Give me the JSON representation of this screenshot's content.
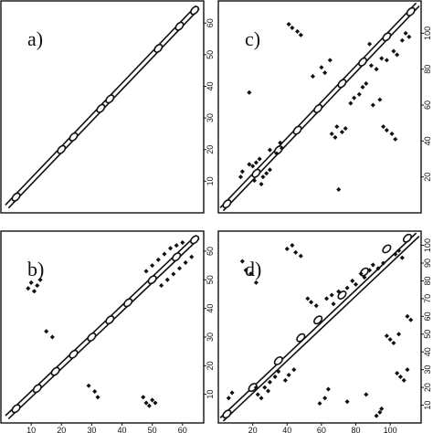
{
  "chart_data": [
    {
      "type": "contour",
      "panel_label": "a)",
      "x_tick_labels": [],
      "y_tick_labels": [
        "10",
        "20",
        "30",
        "40",
        "50",
        "60"
      ],
      "xlim": [
        0,
        67
      ],
      "ylim": [
        0,
        67
      ],
      "diagonal_blobs": [
        [
          5,
          5
        ],
        [
          20,
          20
        ],
        [
          24,
          24
        ],
        [
          33,
          33
        ],
        [
          36,
          36
        ],
        [
          52,
          52
        ],
        [
          59,
          59
        ],
        [
          64,
          64
        ]
      ],
      "offdiag_points": []
    },
    {
      "type": "contour",
      "panel_label": "c)",
      "x_tick_labels": [],
      "y_tick_labels": [
        "20",
        "40",
        "60",
        "80",
        "100"
      ],
      "xlim": [
        0,
        118
      ],
      "ylim": [
        0,
        118
      ],
      "diagonal_blobs": [
        [
          5,
          5
        ],
        [
          22,
          22
        ],
        [
          35,
          35
        ],
        [
          46,
          46
        ],
        [
          58,
          58
        ],
        [
          72,
          72
        ],
        [
          84,
          84
        ],
        [
          98,
          98
        ],
        [
          112,
          112
        ]
      ],
      "offdiag_points": [
        [
          20,
          26
        ],
        [
          22,
          28
        ],
        [
          24,
          30
        ],
        [
          28,
          22
        ],
        [
          30,
          24
        ],
        [
          26,
          20
        ],
        [
          14,
          23
        ],
        [
          18,
          27
        ],
        [
          21,
          18
        ],
        [
          25,
          16
        ],
        [
          13,
          20
        ],
        [
          30,
          35
        ],
        [
          34,
          33
        ],
        [
          36,
          39
        ],
        [
          37,
          36
        ],
        [
          18,
          67
        ],
        [
          41,
          105
        ],
        [
          43,
          103
        ],
        [
          46,
          101
        ],
        [
          48,
          99
        ],
        [
          66,
          44
        ],
        [
          68,
          42
        ],
        [
          69,
          48
        ],
        [
          72,
          45
        ],
        [
          74,
          47
        ],
        [
          77,
          61
        ],
        [
          79,
          64
        ],
        [
          82,
          66
        ],
        [
          84,
          70
        ],
        [
          86,
          72
        ],
        [
          89,
          82
        ],
        [
          92,
          80
        ],
        [
          95,
          86
        ],
        [
          98,
          85
        ],
        [
          102,
          90
        ],
        [
          104,
          88
        ],
        [
          107,
          96
        ],
        [
          109,
          100
        ],
        [
          111,
          98
        ],
        [
          96,
          48
        ],
        [
          98,
          46
        ],
        [
          101,
          44
        ],
        [
          103,
          41
        ],
        [
          90,
          60
        ],
        [
          94,
          63
        ],
        [
          70,
          13
        ],
        [
          60,
          81
        ],
        [
          62,
          78
        ],
        [
          55,
          76
        ],
        [
          65,
          85
        ],
        [
          88,
          94
        ]
      ]
    },
    {
      "type": "contour",
      "panel_label": "b)",
      "x_tick_labels": [
        "10",
        "20",
        "30",
        "40",
        "50",
        "60"
      ],
      "y_tick_labels": [
        "10",
        "20",
        "30",
        "40",
        "50",
        "60"
      ],
      "xlim": [
        0,
        67
      ],
      "ylim": [
        0,
        67
      ],
      "diagonal_blobs": [
        [
          5,
          5
        ],
        [
          12,
          12
        ],
        [
          18,
          18
        ],
        [
          24,
          24
        ],
        [
          30,
          30
        ],
        [
          36,
          36
        ],
        [
          42,
          42
        ],
        [
          50,
          50
        ],
        [
          58,
          58
        ],
        [
          64,
          64
        ]
      ],
      "offdiag_points": [
        [
          9,
          47
        ],
        [
          10,
          49
        ],
        [
          12,
          48
        ],
        [
          11,
          46
        ],
        [
          13,
          50
        ],
        [
          15,
          32
        ],
        [
          17,
          30
        ],
        [
          29,
          13
        ],
        [
          31,
          11
        ],
        [
          32,
          9
        ],
        [
          47,
          9
        ],
        [
          48,
          7
        ],
        [
          49,
          6
        ],
        [
          50,
          8
        ],
        [
          51,
          7
        ],
        [
          48,
          53
        ],
        [
          50,
          55
        ],
        [
          52,
          57
        ],
        [
          54,
          59
        ],
        [
          56,
          61
        ],
        [
          58,
          62
        ],
        [
          60,
          63
        ],
        [
          53,
          48
        ],
        [
          55,
          50
        ],
        [
          57,
          52
        ],
        [
          59,
          54
        ],
        [
          61,
          56
        ],
        [
          63,
          58
        ]
      ]
    },
    {
      "type": "contour",
      "panel_label": "d)",
      "x_tick_labels": [
        "20",
        "40",
        "60",
        "80",
        "100"
      ],
      "y_tick_labels": [
        "10",
        "20",
        "30",
        "40",
        "50",
        "60",
        "70",
        "80",
        "90",
        "100"
      ],
      "xlim": [
        0,
        118
      ],
      "ylim": [
        0,
        108
      ],
      "diagonal_blobs": [
        [
          5,
          5
        ],
        [
          20,
          20
        ],
        [
          35,
          35
        ],
        [
          48,
          48
        ],
        [
          58,
          58
        ],
        [
          72,
          72
        ],
        [
          85,
          85
        ],
        [
          98,
          98
        ],
        [
          110,
          104
        ]
      ],
      "offdiag_points": [
        [
          14,
          91
        ],
        [
          16,
          86
        ],
        [
          19,
          84
        ],
        [
          22,
          79
        ],
        [
          40,
          98
        ],
        [
          43,
          100
        ],
        [
          45,
          96
        ],
        [
          48,
          94
        ],
        [
          23,
          16
        ],
        [
          25,
          14
        ],
        [
          27,
          20
        ],
        [
          22,
          20
        ],
        [
          29,
          18
        ],
        [
          30,
          23
        ],
        [
          33,
          26
        ],
        [
          35,
          29
        ],
        [
          39,
          24
        ],
        [
          41,
          27
        ],
        [
          44,
          30
        ],
        [
          59,
          11
        ],
        [
          62,
          14
        ],
        [
          64,
          19
        ],
        [
          75,
          12
        ],
        [
          86,
          16
        ],
        [
          92,
          4
        ],
        [
          94,
          6
        ],
        [
          95,
          8
        ],
        [
          63,
          70
        ],
        [
          66,
          72
        ],
        [
          67,
          67
        ],
        [
          70,
          74
        ],
        [
          75,
          76
        ],
        [
          78,
          80
        ],
        [
          80,
          78
        ],
        [
          83,
          84
        ],
        [
          85,
          82
        ],
        [
          88,
          86
        ],
        [
          90,
          89
        ],
        [
          93,
          87
        ],
        [
          96,
          90
        ],
        [
          103,
          95
        ],
        [
          105,
          97
        ],
        [
          107,
          93
        ],
        [
          98,
          49
        ],
        [
          100,
          47
        ],
        [
          102,
          45
        ],
        [
          105,
          50
        ],
        [
          104,
          28
        ],
        [
          106,
          26
        ],
        [
          108,
          24
        ],
        [
          110,
          30
        ],
        [
          52,
          70
        ],
        [
          54,
          68
        ],
        [
          57,
          66
        ],
        [
          110,
          60
        ],
        [
          112,
          58
        ],
        [
          6,
          14
        ],
        [
          8,
          17
        ]
      ]
    }
  ]
}
